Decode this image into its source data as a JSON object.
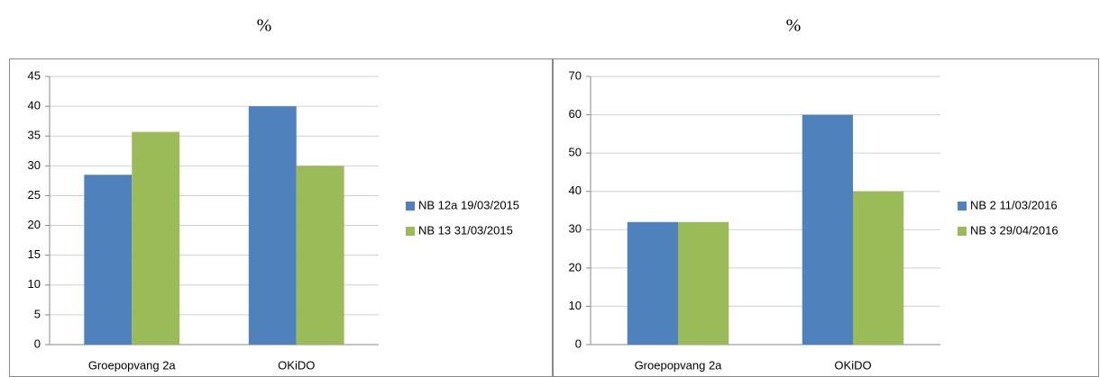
{
  "chart_data": [
    {
      "type": "bar",
      "title": "%",
      "categories": [
        "Groepopvang 2a",
        "OKiDO"
      ],
      "series": [
        {
          "name": "NB 12a 19/03/2015",
          "color": "#4f81bd",
          "values": [
            28.5,
            40
          ]
        },
        {
          "name": "NB 13 31/03/2015",
          "color": "#9bbb59",
          "values": [
            35.7,
            30
          ]
        }
      ],
      "ylim": [
        0,
        45
      ],
      "yticks": [
        0,
        5,
        10,
        15,
        20,
        25,
        30,
        35,
        40,
        45
      ],
      "grid": true,
      "legend": "right"
    },
    {
      "type": "bar",
      "title": "%",
      "categories": [
        "Groepopvang 2a",
        "OKiDO"
      ],
      "series": [
        {
          "name": "NB 2 11/03/2016",
          "color": "#4f81bd",
          "values": [
            32,
            60
          ]
        },
        {
          "name": "NB 3 29/04/2016",
          "color": "#9bbb59",
          "values": [
            32,
            40
          ]
        }
      ],
      "ylim": [
        0,
        70
      ],
      "yticks": [
        0,
        10,
        20,
        30,
        40,
        50,
        60,
        70
      ],
      "grid": true,
      "legend": "right"
    }
  ]
}
